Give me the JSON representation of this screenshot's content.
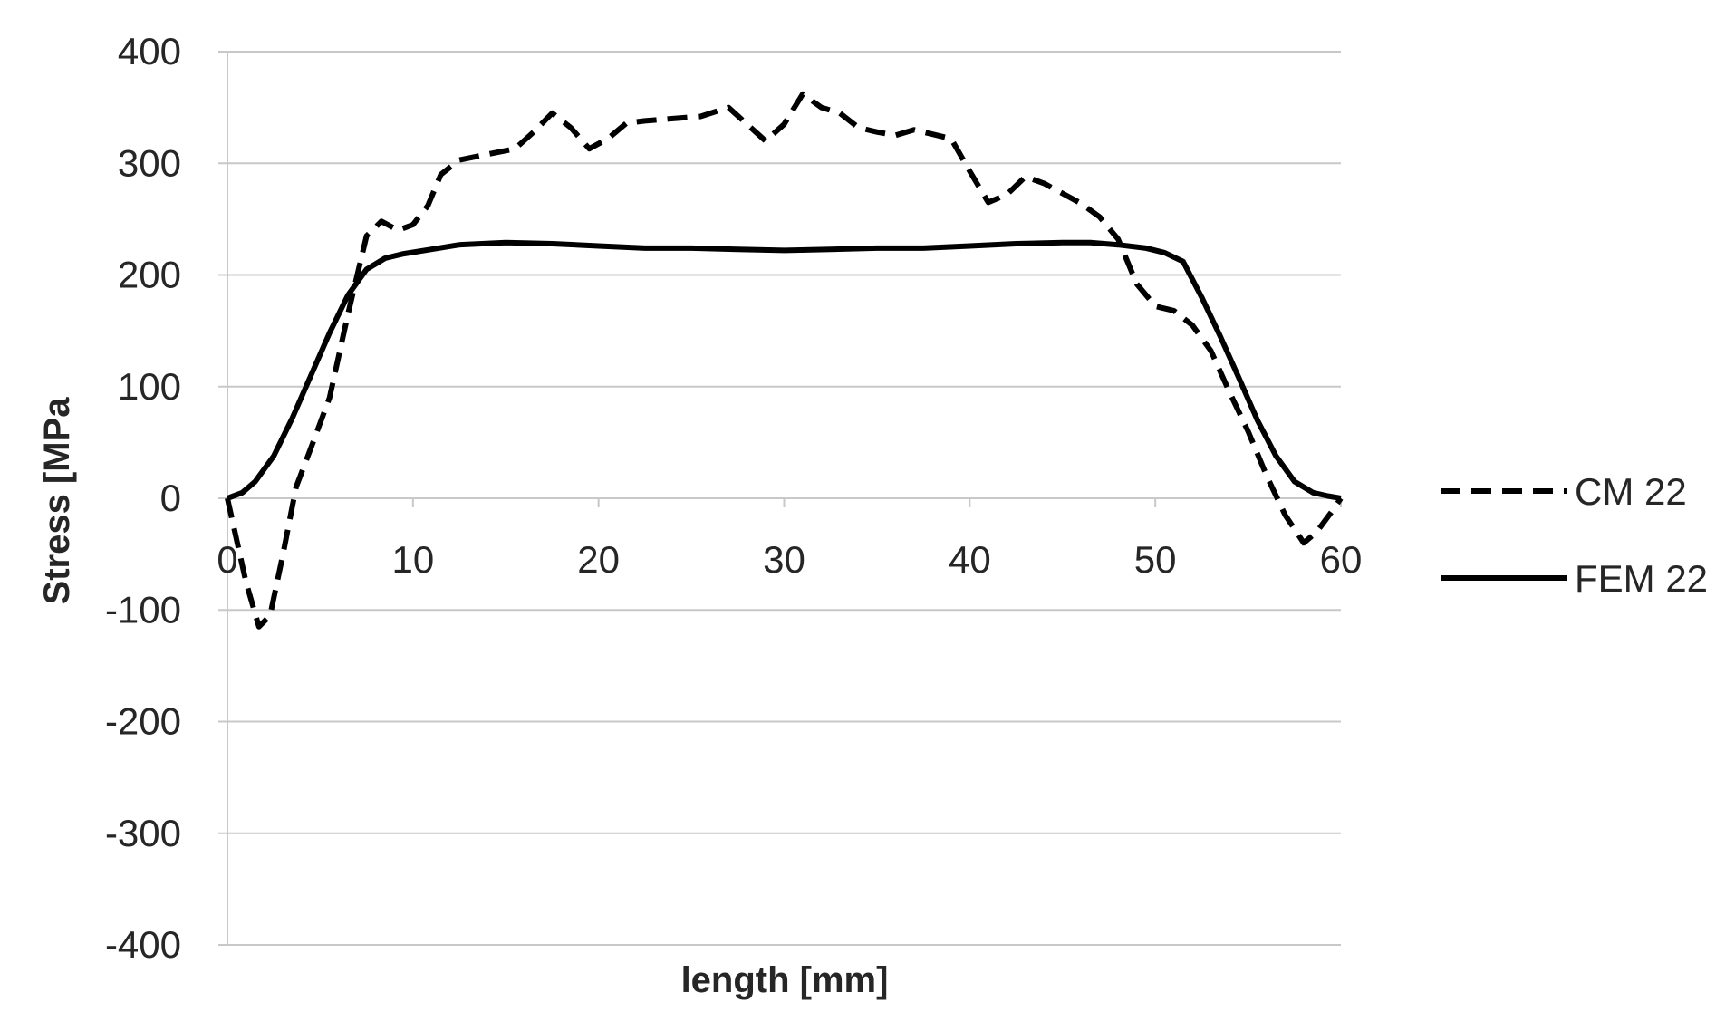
{
  "chart_data": {
    "type": "line",
    "title": "",
    "xlabel": "length [mm]",
    "ylabel": "Stress [MPa",
    "xlim": [
      0,
      60
    ],
    "ylim": [
      -400,
      400
    ],
    "x_ticks": [
      0,
      10,
      20,
      30,
      40,
      50,
      60
    ],
    "y_ticks": [
      400,
      300,
      200,
      100,
      0,
      -100,
      -200,
      -300,
      -400
    ],
    "x_tick_labels": [
      "0",
      "10",
      "20",
      "30",
      "40",
      "50",
      "60"
    ],
    "y_tick_labels": [
      "400",
      "300",
      "200",
      "100",
      "0",
      "-100",
      "-200",
      "-300",
      "-400"
    ],
    "grid": "horizontal",
    "legend_position": "right",
    "series": [
      {
        "name": "CM 22",
        "style": "dashed",
        "color": "#000000",
        "x": [
          0,
          1,
          1.7,
          2.3,
          3,
          3.7,
          4.5,
          5.5,
          6.5,
          7.5,
          8.3,
          9.2,
          10,
          10.8,
          11.5,
          12.5,
          14,
          15.5,
          16.5,
          17.5,
          18.5,
          19.5,
          20.5,
          21.5,
          22.5,
          24,
          25.5,
          27,
          28,
          29,
          30,
          31,
          32,
          33,
          34,
          35,
          36,
          37,
          38,
          39,
          40,
          41,
          42,
          43,
          44,
          45,
          46,
          47,
          48,
          49,
          50,
          51,
          52,
          53,
          54,
          55,
          56,
          57,
          58,
          58.7,
          59.5,
          60
        ],
        "y": [
          0,
          -75,
          -115,
          -105,
          -50,
          10,
          45,
          90,
          165,
          235,
          248,
          240,
          245,
          262,
          290,
          303,
          308,
          313,
          328,
          345,
          332,
          313,
          322,
          336,
          338,
          340,
          342,
          350,
          335,
          320,
          335,
          362,
          350,
          345,
          332,
          328,
          325,
          330,
          326,
          322,
          293,
          265,
          272,
          288,
          282,
          273,
          264,
          252,
          232,
          192,
          172,
          168,
          155,
          132,
          95,
          60,
          20,
          -15,
          -40,
          -30,
          -12,
          0
        ]
      },
      {
        "name": "FEM 22",
        "style": "solid",
        "color": "#000000",
        "x": [
          0,
          0.8,
          1.5,
          2.5,
          3.5,
          4.5,
          5.5,
          6.5,
          7.5,
          8.5,
          9.5,
          11,
          12.5,
          15,
          17.5,
          20,
          22.5,
          25,
          27.5,
          30,
          32.5,
          35,
          37.5,
          40,
          42.5,
          45,
          46.5,
          48,
          49.5,
          50.5,
          51.5,
          52.5,
          53.5,
          54.5,
          55.5,
          56.5,
          57.5,
          58.5,
          59.3,
          60
        ],
        "y": [
          0,
          5,
          15,
          38,
          72,
          110,
          148,
          182,
          205,
          215,
          219,
          223,
          227,
          229,
          228,
          226,
          224,
          224,
          223,
          222,
          223,
          224,
          224,
          226,
          228,
          229,
          229,
          227,
          224,
          220,
          212,
          180,
          145,
          108,
          70,
          38,
          15,
          5,
          2,
          0
        ]
      }
    ]
  }
}
